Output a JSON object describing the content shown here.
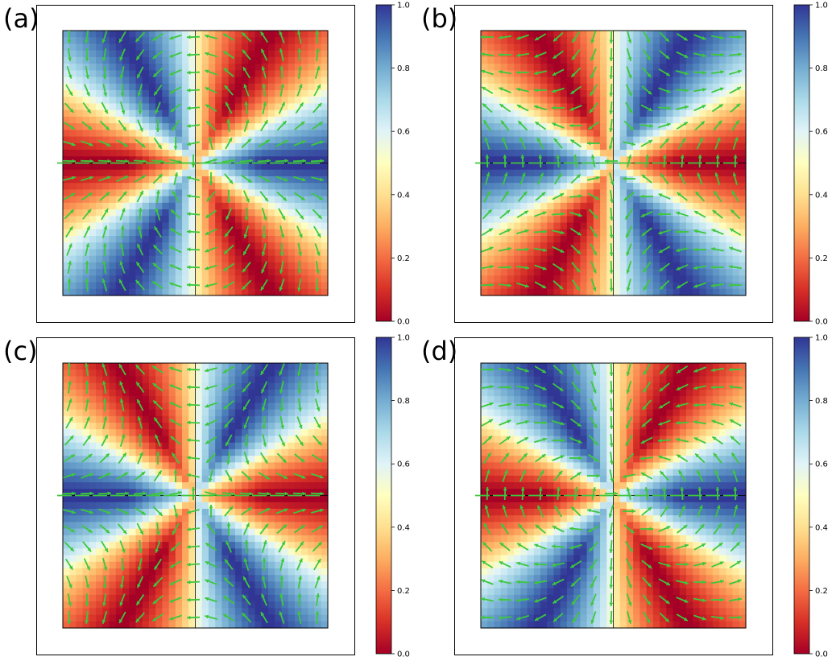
{
  "colorbar": {
    "ticks": [
      "0.0",
      "0.2",
      "0.4",
      "0.6",
      "0.8",
      "1.0"
    ],
    "colormap": "RdYlBu",
    "stops": [
      "#a50026",
      "#d73027",
      "#f46d43",
      "#fdae61",
      "#fee090",
      "#ffffbf",
      "#e0f3f8",
      "#abd9e9",
      "#74add1",
      "#4575b4",
      "#313695"
    ]
  },
  "arrow_color": "#3cc83c",
  "chart_data": [
    {
      "label": "(a)",
      "type": "heatmap",
      "field": "sixfold sectors: blue upper-left / upper-right / bottom, red top / lower-left / lower-right",
      "sector_values": {
        "top": 0.0,
        "upper_right": 1.0,
        "lower_right": 0.0,
        "bottom": 1.0,
        "lower_left": 0.0,
        "upper_left": 1.0
      },
      "value_range": [
        0.0,
        1.0
      ],
      "grid": false
    },
    {
      "label": "(b)",
      "type": "heatmap",
      "field": "sixfold sectors: red upper-left / upper-right / bottom, blue top / lower-left / lower-right",
      "sector_values": {
        "top": 1.0,
        "upper_right": 0.0,
        "lower_right": 1.0,
        "bottom": 0.0,
        "lower_left": 1.0,
        "upper_left": 0.0
      },
      "value_range": [
        0.0,
        1.0
      ],
      "grid": false
    },
    {
      "label": "(c)",
      "type": "heatmap",
      "field": "sixfold sectors: red upper-left / upper-right / bottom, blue top / lower-left / lower-right",
      "sector_values": {
        "top": 1.0,
        "upper_right": 0.0,
        "lower_right": 1.0,
        "bottom": 0.0,
        "lower_left": 1.0,
        "upper_left": 0.0
      },
      "value_range": [
        0.0,
        1.0
      ],
      "grid": false
    },
    {
      "label": "(d)",
      "type": "heatmap",
      "field": "sixfold sectors: blue upper-left / upper-right / bottom, red top / lower-left / lower-right",
      "sector_values": {
        "top": 0.0,
        "upper_right": 1.0,
        "lower_right": 0.0,
        "bottom": 1.0,
        "lower_left": 0.0,
        "upper_left": 1.0
      },
      "value_range": [
        0.0,
        1.0
      ],
      "grid": false
    }
  ]
}
